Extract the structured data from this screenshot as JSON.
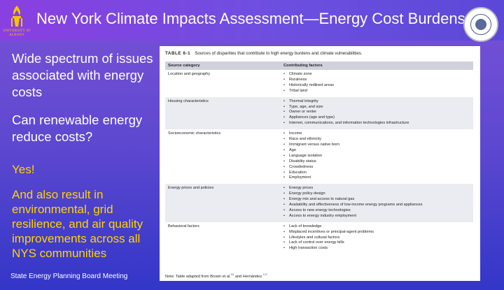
{
  "slide": {
    "title": "New York Climate Impacts Assessment—Energy Cost Burdens",
    "logo_text": "UNIVERSITY AT ALBANY",
    "left_text": [
      "Wide spectrum of issues associated with energy costs",
      "Can renewable energy reduce costs?",
      "Yes!",
      "And also result in environmental, grid resilience, and air quality improvements across all NYS communities"
    ],
    "footer": "State Energy Planning Board Meeting"
  },
  "table": {
    "label": "TABLE 6-1",
    "caption": "Sources of disparities that contribute to high energy burdens and climate vulnerabilities.",
    "headers": [
      "Source category",
      "Contributing factors"
    ],
    "rows": [
      {
        "category": "Location and geography",
        "factors": [
          "Climate zone",
          "Ruralness",
          "Historically redlined areas",
          "Tribal land"
        ]
      },
      {
        "category": "Housing characteristics",
        "factors": [
          "Thermal integrity",
          "Type, age, and size",
          "Owner or renter",
          "Appliances (age and type)",
          "Internet, communications, and information technologies infrastructure"
        ]
      },
      {
        "category": "Socioeconomic characteristics",
        "factors": [
          "Income",
          "Race and ethnicity",
          "Immigrant versus native born",
          "Age",
          "Language isolation",
          "Disability status",
          "Crowdedness",
          "Education",
          "Employment"
        ]
      },
      {
        "category": "Energy prices and policies",
        "factors": [
          "Energy prices",
          "Energy policy design",
          "Energy mix and access to natural gas",
          "Availability and effectiveness of low-income energy programs and appliances",
          "Access to new energy technologies",
          "Access to energy industry employment"
        ]
      },
      {
        "category": "Behavioral factors",
        "factors": [
          "Lack of knowledge",
          "Misplaced incentives or principal-agent problems",
          "Lifestyles and cultural factors",
          "Lack of control over energy bills",
          "High transaction costs"
        ]
      }
    ],
    "note_prefix": "Note: Table adapted from Brown et al.",
    "note_ref1": "54",
    "note_mid": " and Hernández.",
    "note_ref2": "147"
  },
  "colors": {
    "title": "#ffffff",
    "accent_yellow": "#ffd400",
    "header_row": "#cfd2dd",
    "alt_row": "#ebecf1"
  }
}
